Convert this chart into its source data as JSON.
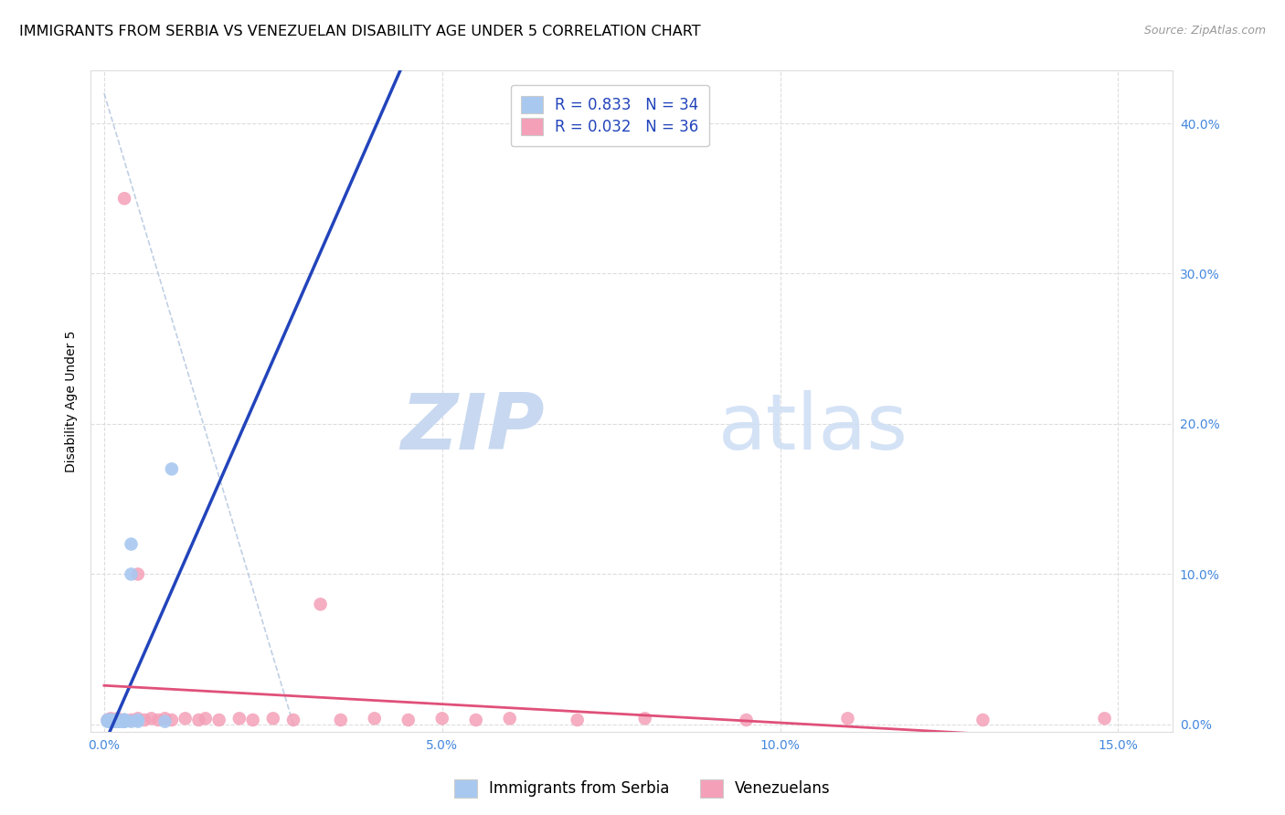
{
  "title": "IMMIGRANTS FROM SERBIA VS VENEZUELAN DISABILITY AGE UNDER 5 CORRELATION CHART",
  "source": "Source: ZipAtlas.com",
  "ylabel": "Disability Age Under 5",
  "xlabel_vals": [
    0.0,
    0.05,
    0.1,
    0.15
  ],
  "ylabel_vals": [
    0.0,
    0.1,
    0.2,
    0.3,
    0.4
  ],
  "xlim": [
    -0.002,
    0.158
  ],
  "ylim": [
    -0.005,
    0.435
  ],
  "serbia_R": 0.833,
  "serbia_N": 34,
  "venezuela_R": 0.032,
  "venezuela_N": 36,
  "serbia_color": "#a8c8f0",
  "venezuela_color": "#f4a0b8",
  "serbia_line_color": "#2244bb",
  "venezuela_line_color": "#e0507a",
  "trend_dashed_color": "#b0c4de",
  "background_color": "#ffffff",
  "watermark_zip_color": "#c8d8f0",
  "watermark_atlas_color": "#d0dff5",
  "serbia_points_x": [
    0.0005,
    0.0005,
    0.0007,
    0.0008,
    0.001,
    0.001,
    0.001,
    0.001,
    0.001,
    0.0015,
    0.0015,
    0.0015,
    0.002,
    0.002,
    0.002,
    0.002,
    0.002,
    0.002,
    0.002,
    0.002,
    0.0025,
    0.003,
    0.003,
    0.003,
    0.003,
    0.003,
    0.003,
    0.004,
    0.004,
    0.004,
    0.005,
    0.005,
    0.009,
    0.01
  ],
  "serbia_points_y": [
    0.002,
    0.003,
    0.002,
    0.003,
    0.002,
    0.002,
    0.003,
    0.002,
    0.003,
    0.002,
    0.003,
    0.002,
    0.002,
    0.003,
    0.002,
    0.003,
    0.002,
    0.003,
    0.002,
    0.003,
    0.002,
    0.002,
    0.003,
    0.002,
    0.003,
    0.002,
    0.003,
    0.1,
    0.12,
    0.002,
    0.002,
    0.003,
    0.002,
    0.17
  ],
  "venezuela_points_x": [
    0.0005,
    0.001,
    0.001,
    0.002,
    0.002,
    0.003,
    0.003,
    0.004,
    0.005,
    0.005,
    0.006,
    0.007,
    0.008,
    0.009,
    0.01,
    0.012,
    0.014,
    0.015,
    0.017,
    0.02,
    0.022,
    0.025,
    0.028,
    0.032,
    0.035,
    0.04,
    0.045,
    0.05,
    0.055,
    0.06,
    0.07,
    0.08,
    0.095,
    0.11,
    0.13,
    0.148
  ],
  "venezuela_points_y": [
    0.003,
    0.003,
    0.004,
    0.003,
    0.004,
    0.003,
    0.35,
    0.003,
    0.1,
    0.004,
    0.003,
    0.004,
    0.003,
    0.004,
    0.003,
    0.004,
    0.003,
    0.004,
    0.003,
    0.004,
    0.003,
    0.004,
    0.003,
    0.08,
    0.003,
    0.004,
    0.003,
    0.004,
    0.003,
    0.004,
    0.003,
    0.004,
    0.003,
    0.004,
    0.003,
    0.004
  ],
  "grid_color": "#dddddd",
  "title_fontsize": 11.5,
  "axis_label_fontsize": 10,
  "tick_fontsize": 10,
  "legend_fontsize": 12,
  "source_fontsize": 9
}
